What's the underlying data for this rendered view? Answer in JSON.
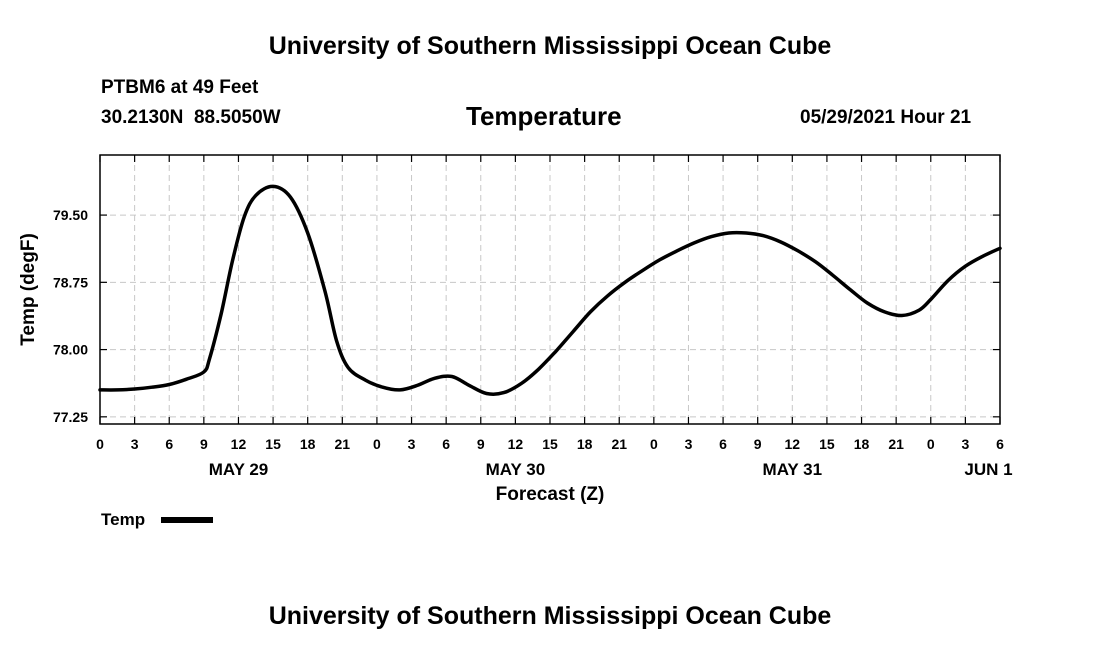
{
  "header": {
    "title": "University of Southern Mississippi Ocean Cube",
    "station": "PTBM6 at 49 Feet",
    "coords": "30.2130N  88.5050W",
    "chart_title": "Temperature",
    "datetime": "05/29/2021 Hour 21"
  },
  "footer": {
    "title": "University of Southern Mississippi Ocean Cube"
  },
  "legend": {
    "label": "Temp",
    "color": "#000000"
  },
  "chart_data": {
    "type": "line",
    "title": "Temperature",
    "xlabel": "Forecast (Z)",
    "ylabel": "Temp (degF)",
    "xlim": [
      0,
      78
    ],
    "ylim": [
      77.17,
      80.17
    ],
    "grid": true,
    "yticks": [
      77.25,
      78.0,
      78.75,
      79.5
    ],
    "ytick_labels": [
      "77.25",
      "78.00",
      "78.75",
      "79.50"
    ],
    "xtick_hours": [
      0,
      3,
      6,
      9,
      12,
      15,
      18,
      21,
      24,
      27,
      30,
      33,
      36,
      39,
      42,
      45,
      48,
      51,
      54,
      57,
      60,
      63,
      66,
      69,
      72,
      75,
      78
    ],
    "xtick_labels": [
      "0",
      "3",
      "6",
      "9",
      "12",
      "15",
      "18",
      "21",
      "0",
      "3",
      "6",
      "9",
      "12",
      "15",
      "18",
      "21",
      "0",
      "3",
      "6",
      "9",
      "12",
      "15",
      "18",
      "21",
      "0",
      "3",
      "6"
    ],
    "date_labels": [
      {
        "hour": 12,
        "label": "MAY 29"
      },
      {
        "hour": 36,
        "label": "MAY 30"
      },
      {
        "hour": 60,
        "label": "MAY 31"
      },
      {
        "hour": 77,
        "label": "JUN 1"
      }
    ],
    "series": [
      {
        "name": "Temp",
        "color": "#000000",
        "x": [
          0,
          1.5,
          3,
          4.5,
          6,
          7.5,
          9,
          9.5,
          10.5,
          11.5,
          12.5,
          13.5,
          15,
          16.5,
          18,
          19.5,
          20.5,
          21.5,
          23,
          24.5,
          26,
          27.5,
          29,
          30.5,
          32,
          33.5,
          35,
          36.5,
          38,
          39.5,
          41,
          42.5,
          44,
          45.5,
          47,
          48.5,
          50,
          51.5,
          53,
          54.5,
          56,
          57.5,
          59,
          60.5,
          62,
          63.5,
          65,
          66.5,
          68,
          69.5,
          71,
          72,
          73.5,
          75,
          76.5,
          78
        ],
        "y": [
          77.55,
          77.55,
          77.56,
          77.58,
          77.61,
          77.67,
          77.75,
          77.9,
          78.4,
          79.0,
          79.48,
          79.72,
          79.82,
          79.7,
          79.3,
          78.65,
          78.1,
          77.8,
          77.66,
          77.58,
          77.55,
          77.6,
          77.68,
          77.7,
          77.6,
          77.51,
          77.52,
          77.62,
          77.78,
          77.98,
          78.2,
          78.42,
          78.6,
          78.75,
          78.88,
          79.0,
          79.1,
          79.19,
          79.26,
          79.3,
          79.3,
          79.27,
          79.2,
          79.1,
          78.98,
          78.83,
          78.67,
          78.52,
          78.42,
          78.38,
          78.44,
          78.56,
          78.77,
          78.93,
          79.04,
          79.13
        ]
      }
    ]
  }
}
